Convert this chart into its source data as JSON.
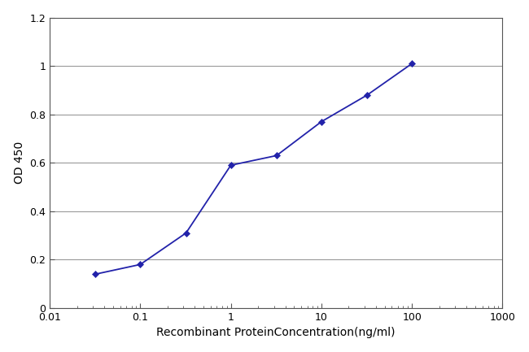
{
  "x": [
    0.032,
    0.1,
    0.32,
    1.0,
    3.2,
    10.0,
    32.0,
    100.0
  ],
  "y": [
    0.14,
    0.18,
    0.31,
    0.59,
    0.63,
    0.77,
    0.88,
    1.01
  ],
  "line_color": "#2222aa",
  "marker": "D",
  "marker_size": 4,
  "line_width": 1.3,
  "xlabel": "Recombinant ProteinConcentration(ng/ml)",
  "ylabel": "OD 450",
  "xlim": [
    0.01,
    1000
  ],
  "ylim": [
    0,
    1.2
  ],
  "yticks": [
    0,
    0.2,
    0.4,
    0.6,
    0.8,
    1.0,
    1.2
  ],
  "xtick_values": [
    0.01,
    0.1,
    1,
    10,
    100,
    1000
  ],
  "figure_bg": "#ffffff",
  "plot_bg": "#ffffff",
  "grid_color": "#999999",
  "spine_color": "#555555",
  "xlabel_fontsize": 10,
  "ylabel_fontsize": 10,
  "tick_fontsize": 9
}
